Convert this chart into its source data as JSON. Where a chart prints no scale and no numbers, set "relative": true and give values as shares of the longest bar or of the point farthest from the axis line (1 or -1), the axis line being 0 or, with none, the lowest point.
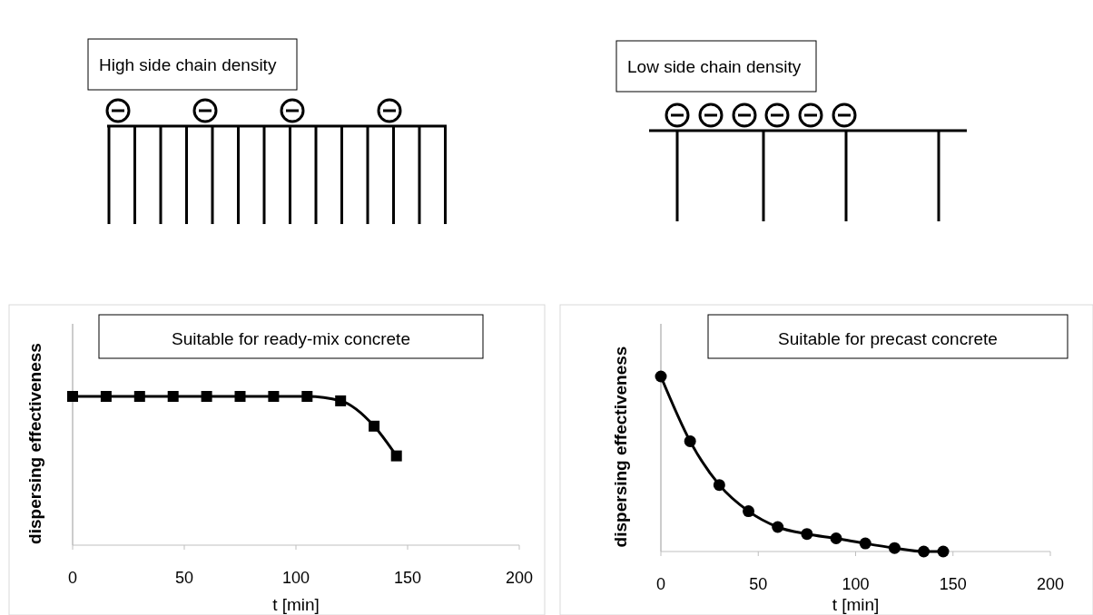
{
  "chart_data": [
    {
      "type": "line",
      "relative": true,
      "xlabel": "t [min]",
      "ylabel": "dispersing effectiveness",
      "annotations": [
        "High side chain density",
        "Suitable for ready-mix concrete"
      ],
      "x": [
        0,
        15,
        30,
        45,
        60,
        75,
        90,
        105,
        120,
        135,
        145
      ],
      "xlim": [
        0,
        200
      ],
      "xticks": [
        0,
        50,
        100,
        150,
        200
      ],
      "marker": "square",
      "line_style": "solid",
      "series": [
        {
          "color": "#000000",
          "values": [
            1,
            1,
            1,
            1,
            1,
            1,
            1,
            1,
            0.97,
            0.8,
            0.6
          ]
        }
      ]
    },
    {
      "type": "line",
      "relative": true,
      "xlabel": "t [min]",
      "ylabel": "dispersing effectiveness",
      "annotations": [
        "Low side chain density",
        "Suitable for precast concrete"
      ],
      "x": [
        0,
        15,
        30,
        45,
        60,
        75,
        90,
        105,
        120,
        135,
        145
      ],
      "xlim": [
        0,
        200
      ],
      "xticks": [
        0,
        50,
        100,
        150,
        200
      ],
      "marker": "circle",
      "line_style": "solid",
      "series": [
        {
          "color": "#000000",
          "values": [
            1,
            0.63,
            0.38,
            0.23,
            0.14,
            0.1,
            0.075,
            0.046,
            0.02,
            0,
            0
          ]
        }
      ]
    }
  ]
}
